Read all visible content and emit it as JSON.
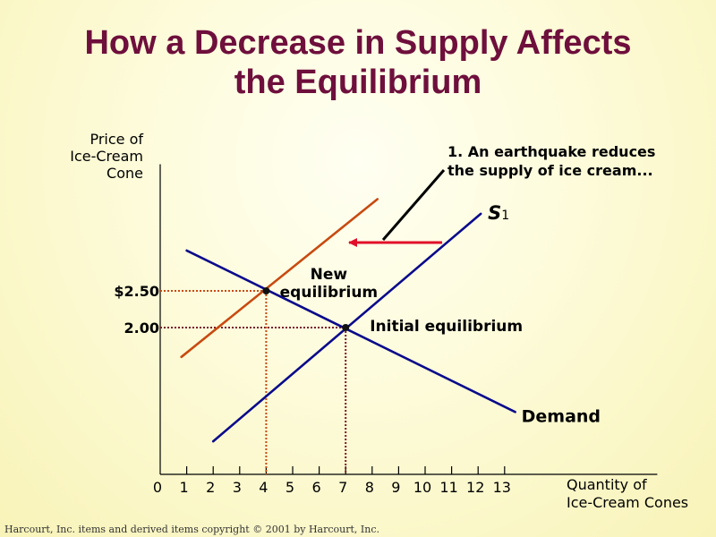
{
  "title_lines": [
    "How a Decrease in Supply Affects",
    "the Equilibrium"
  ],
  "footer": "Harcourt, Inc. items and derived items copyright © 2001  by Harcourt, Inc.",
  "colors": {
    "title": "#6e0f3c",
    "demand": "#0a0a8c",
    "supply": "#0a0a8c",
    "new_supply": "#c84a10",
    "equilibrium_guides": "#7a1a2a",
    "new_equilibrium_guides": "#c84a10",
    "arrow": "#e0102a"
  },
  "chart_data": {
    "type": "line",
    "ylabel_lines": [
      "Price of",
      "Ice-Cream",
      "Cone"
    ],
    "xlabel_lines": [
      "Quantity of",
      "Ice-Cream  Cones"
    ],
    "x_ticks": [
      0,
      1,
      2,
      3,
      4,
      5,
      6,
      7,
      8,
      9,
      10,
      11,
      12,
      13
    ],
    "x_tick_labels": [
      "0",
      "1",
      "2",
      "3",
      "4",
      "5",
      "6",
      "7",
      "8",
      "9",
      "10",
      "11",
      "12",
      "13"
    ],
    "y_tick_labels": [
      {
        "value": 2.5,
        "label": "$2.50"
      },
      {
        "value": 2.0,
        "label": "2.00"
      }
    ],
    "xlim": [
      0,
      19
    ],
    "ylim": [
      0,
      4.25
    ],
    "grid": false,
    "series": [
      {
        "name": "Demand",
        "points": [
          [
            1,
            3.05
          ],
          [
            13.4,
            0.85
          ]
        ]
      },
      {
        "name": "S1",
        "points": [
          [
            2,
            0.45
          ],
          [
            12.1,
            3.55
          ]
        ]
      },
      {
        "name": "",
        "points": [
          [
            0.8,
            1.6
          ],
          [
            8.2,
            3.75
          ]
        ]
      }
    ],
    "equilibria": [
      {
        "label_lines": [
          "Initial equilibrium"
        ],
        "x": 7,
        "y": 2.0
      },
      {
        "label_lines": [
          "New",
          "equilibrium"
        ],
        "x": 4,
        "y": 2.5
      }
    ],
    "annotations": {
      "shock_lines": [
        "1. An earthquake reduces",
        "the supply of ice cream..."
      ],
      "demand_label": "Demand",
      "supply_label": "S",
      "supply_subscript": "1"
    }
  }
}
